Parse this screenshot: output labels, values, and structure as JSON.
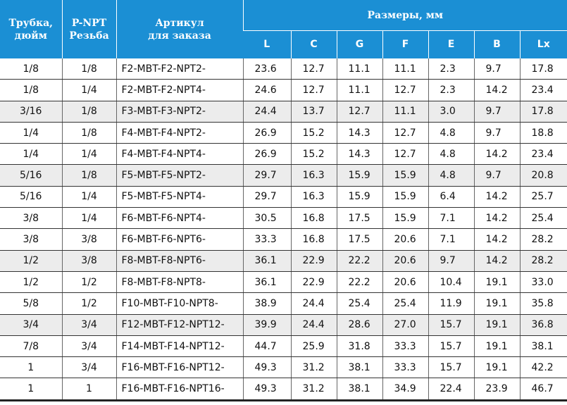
{
  "table": {
    "header": {
      "groups": [
        [
          "Трубка,",
          "дюйм"
        ],
        [
          "P-NPT",
          "Резьба"
        ],
        [
          "Артикул",
          "для заказа"
        ]
      ],
      "dimensions": "Размеры, мм",
      "sub": [
        "L",
        "C",
        "G",
        "F",
        "E",
        "B",
        "Lx"
      ]
    },
    "rows": [
      [
        "1/8",
        "1/8",
        "F2-MBT-F2-NPT2-",
        "23.6",
        "12.7",
        "11.1",
        "11.1",
        "2.3",
        "9.7",
        "17.8"
      ],
      [
        "1/8",
        "1/4",
        "F2-MBT-F2-NPT4-",
        "24.6",
        "12.7",
        "11.1",
        "12.7",
        "2.3",
        "14.2",
        "23.4"
      ],
      [
        "3/16",
        "1/8",
        "F3-MBT-F3-NPT2-",
        "24.4",
        "13.7",
        "12.7",
        "11.1",
        "3.0",
        "9.7",
        "17.8"
      ],
      [
        "1/4",
        "1/8",
        "F4-MBT-F4-NPT2-",
        "26.9",
        "15.2",
        "14.3",
        "12.7",
        "4.8",
        "9.7",
        "18.8"
      ],
      [
        "1/4",
        "1/4",
        "F4-MBT-F4-NPT4-",
        "26.9",
        "15.2",
        "14.3",
        "12.7",
        "4.8",
        "14.2",
        "23.4"
      ],
      [
        "5/16",
        "1/8",
        "F5-MBT-F5-NPT2-",
        "29.7",
        "16.3",
        "15.9",
        "15.9",
        "4.8",
        "9.7",
        "20.8"
      ],
      [
        "5/16",
        "1/4",
        "F5-MBT-F5-NPT4-",
        "29.7",
        "16.3",
        "15.9",
        "15.9",
        "6.4",
        "14.2",
        "25.7"
      ],
      [
        "3/8",
        "1/4",
        "F6-MBT-F6-NPT4-",
        "30.5",
        "16.8",
        "17.5",
        "15.9",
        "7.1",
        "14.2",
        "25.4"
      ],
      [
        "3/8",
        "3/8",
        "F6-MBT-F6-NPT6-",
        "33.3",
        "16.8",
        "17.5",
        "20.6",
        "7.1",
        "14.2",
        "28.2"
      ],
      [
        "1/2",
        "3/8",
        "F8-MBT-F8-NPT6-",
        "36.1",
        "22.9",
        "22.2",
        "20.6",
        "9.7",
        "14.2",
        "28.2"
      ],
      [
        "1/2",
        "1/2",
        "F8-MBT-F8-NPT8-",
        "36.1",
        "22.9",
        "22.2",
        "20.6",
        "10.4",
        "19.1",
        "33.0"
      ],
      [
        "5/8",
        "1/2",
        "F10-MBT-F10-NPT8-",
        "38.9",
        "24.4",
        "25.4",
        "25.4",
        "11.9",
        "19.1",
        "35.8"
      ],
      [
        "3/4",
        "3/4",
        "F12-MBT-F12-NPT12-",
        "39.9",
        "24.4",
        "28.6",
        "27.0",
        "15.7",
        "19.1",
        "36.8"
      ],
      [
        "7/8",
        "3/4",
        "F14-MBT-F14-NPT12-",
        "44.7",
        "25.9",
        "31.8",
        "33.3",
        "15.7",
        "19.1",
        "38.1"
      ],
      [
        "1",
        "3/4",
        "F16-MBT-F16-NPT12-",
        "49.3",
        "31.2",
        "38.1",
        "33.3",
        "15.7",
        "19.1",
        "42.2"
      ],
      [
        "1",
        "1",
        "F16-MBT-F16-NPT16-",
        "49.3",
        "31.2",
        "38.1",
        "34.9",
        "22.4",
        "23.9",
        "46.7"
      ]
    ]
  }
}
